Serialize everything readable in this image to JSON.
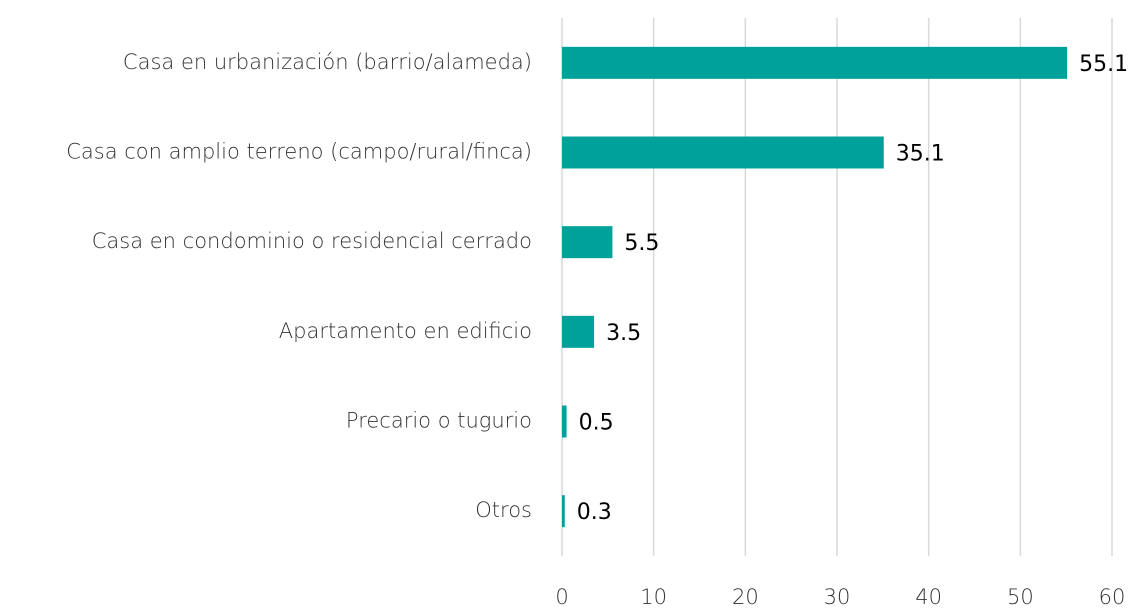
{
  "chart_data": {
    "type": "bar",
    "orientation": "horizontal",
    "categories": [
      "Casa en urbanización (barrio/alameda)",
      "Casa con amplio terreno (campo/rural/finca)",
      "Casa en condominio o residencial cerrado",
      "Apartamento en edificio",
      "Precario o tugurio",
      "Otros"
    ],
    "values": [
      55.1,
      35.1,
      5.5,
      3.5,
      0.5,
      0.3
    ],
    "color": "#00a19a",
    "xlim": [
      0,
      60
    ],
    "xticks": [
      0,
      10,
      20,
      30,
      40,
      50,
      60
    ],
    "grid": true
  }
}
